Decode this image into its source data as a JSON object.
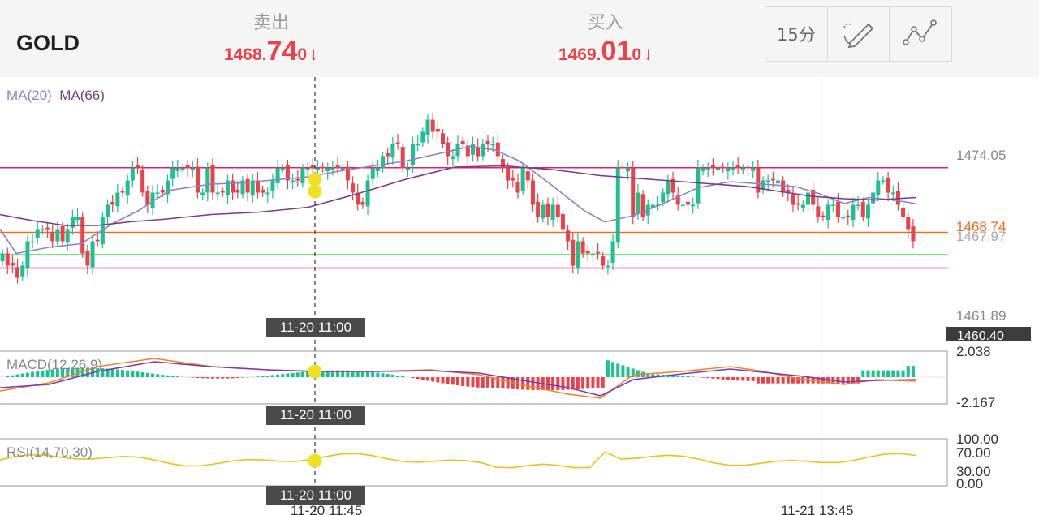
{
  "header": {
    "symbol": "GOLD",
    "sell": {
      "label": "卖出",
      "price_head": "1468.",
      "price_big": "74",
      "price_tail": "0",
      "arrow": "↓"
    },
    "buy": {
      "label": "买入",
      "price_head": "1469.",
      "price_big": "01",
      "price_tail": "0",
      "arrow": "↓"
    },
    "toolbar": {
      "interval": "15分",
      "draw_icon": "pencil-icon",
      "indicator_icon": "line-chart-icon"
    }
  },
  "colors": {
    "up": "#1fbf8f",
    "down": "#e8424a",
    "ma20": "#8b82c4",
    "ma66": "#7b3a87",
    "price_line": "#f26a1b",
    "level_pink": "#e0206a",
    "level_green": "#2ee84a",
    "dif": "#7b3ab0",
    "dea": "#e8842a",
    "rsi": "#e8c020",
    "marker": "#f0e020"
  },
  "chart_data": [
    {
      "type": "candlestick",
      "panel": "price",
      "indicators_label_ma20": "MA(20)",
      "indicators_label_ma66": "MA(66)",
      "y_ticks": [
        "1474.05",
        "1461.89"
      ],
      "current_price": "1468.74",
      "current_price_under": "1467.97",
      "bottom_tag": "1460.40",
      "ylim": [
        1459.5,
        1481.5
      ],
      "horizontal_lines": [
        {
          "value": 1474.05,
          "color": "pink"
        },
        {
          "value": 1468.74,
          "color": "orange"
        },
        {
          "value": 1466.9,
          "color": "green"
        },
        {
          "value": 1465.8,
          "color": "pink"
        }
      ],
      "closes": [
        1467,
        1466,
        1466,
        1465,
        1466,
        1468,
        1468,
        1469,
        1469,
        1469,
        1468,
        1469,
        1468,
        1469,
        1470,
        1470,
        1467,
        1466,
        1468,
        1468,
        1470,
        1471,
        1471,
        1472,
        1472,
        1473,
        1474,
        1474,
        1472,
        1471,
        1472,
        1472,
        1472,
        1473,
        1474,
        1474,
        1474,
        1474,
        1474,
        1472,
        1472,
        1474,
        1472,
        1472,
        1472,
        1473,
        1472,
        1472,
        1473,
        1472,
        1473,
        1472,
        1472,
        1472,
        1473,
        1474,
        1474,
        1473,
        1473,
        1473,
        1474,
        1474,
        1474,
        1474,
        1474,
        1474,
        1474,
        1474,
        1474,
        1473,
        1472,
        1471,
        1471,
        1473,
        1474,
        1474,
        1475,
        1475,
        1476,
        1476,
        1474,
        1474,
        1476,
        1476,
        1477,
        1478,
        1477,
        1477,
        1476,
        1475,
        1475,
        1476,
        1476,
        1475,
        1476,
        1475,
        1476,
        1476,
        1476,
        1475,
        1474,
        1473,
        1473,
        1472,
        1474,
        1473,
        1471,
        1470,
        1471,
        1470,
        1471,
        1470,
        1469,
        1468,
        1466,
        1468,
        1467,
        1467,
        1467,
        1467,
        1466,
        1466,
        1468,
        1474,
        1474,
        1474,
        1470,
        1472,
        1470,
        1471,
        1471,
        1471,
        1472,
        1473,
        1472,
        1471,
        1471,
        1471,
        1471,
        1474,
        1474,
        1474,
        1474,
        1474,
        1474,
        1474,
        1474,
        1474,
        1474,
        1474,
        1474,
        1472,
        1473,
        1473,
        1473,
        1473,
        1472,
        1472,
        1471,
        1471,
        1471,
        1472,
        1471,
        1470,
        1470,
        1471,
        1471,
        1470,
        1470,
        1470,
        1471,
        1471,
        1470,
        1471,
        1472,
        1473,
        1473,
        1472,
        1472,
        1471,
        1470,
        1469,
        1468
      ],
      "ma20_pts": [
        [
          0,
          1469
        ],
        [
          20,
          1467
        ],
        [
          60,
          1467.5
        ],
        [
          100,
          1467.8
        ],
        [
          140,
          1469.5
        ],
        [
          170,
          1470.5
        ],
        [
          210,
          1472.2
        ],
        [
          260,
          1472.7
        ],
        [
          300,
          1472.8
        ],
        [
          330,
          1473
        ],
        [
          380,
          1473.3
        ],
        [
          420,
          1473.8
        ],
        [
          460,
          1474.2
        ],
        [
          500,
          1474.6
        ],
        [
          540,
          1475.2
        ],
        [
          580,
          1475.8
        ],
        [
          610,
          1475.5
        ],
        [
          640,
          1474.6
        ],
        [
          680,
          1472.6
        ],
        [
          720,
          1470.5
        ],
        [
          745,
          1469.6
        ],
        [
          780,
          1470.1
        ],
        [
          820,
          1471.2
        ],
        [
          860,
          1472.4
        ],
        [
          900,
          1472.9
        ],
        [
          940,
          1472.7
        ],
        [
          980,
          1472.5
        ],
        [
          1010,
          1471.9
        ],
        [
          1040,
          1471.1
        ],
        [
          1070,
          1471.6
        ],
        [
          1100,
          1471.4
        ],
        [
          1128,
          1471.1
        ]
      ],
      "ma66_pts": [
        [
          0,
          1470.2
        ],
        [
          40,
          1469.7
        ],
        [
          80,
          1469.3
        ],
        [
          120,
          1469.3
        ],
        [
          160,
          1469.6
        ],
        [
          200,
          1469.8
        ],
        [
          260,
          1470.2
        ],
        [
          320,
          1470.4
        ],
        [
          380,
          1470.8
        ],
        [
          440,
          1471.9
        ],
        [
          500,
          1473.1
        ],
        [
          560,
          1474.1
        ],
        [
          620,
          1474.2
        ],
        [
          680,
          1473.9
        ],
        [
          740,
          1473.4
        ],
        [
          800,
          1473.1
        ],
        [
          860,
          1472.8
        ],
        [
          920,
          1472.5
        ],
        [
          960,
          1472.1
        ],
        [
          1000,
          1471.7
        ],
        [
          1040,
          1471.5
        ],
        [
          1080,
          1471.4
        ],
        [
          1128,
          1471.6
        ]
      ],
      "markers": [
        1473.1,
        1472.1
      ]
    },
    {
      "type": "bar",
      "panel": "macd",
      "label": "MACD(12,26,9)",
      "y_ticks": [
        "2.038",
        "-2.167"
      ],
      "ylim": [
        -2.167,
        2.038
      ]
    },
    {
      "type": "line",
      "panel": "rsi",
      "label": "RSI(14,70,30)",
      "y_ticks": [
        "100.00",
        "70.00",
        "30.00",
        "0.00"
      ],
      "ylim": [
        0,
        100
      ]
    }
  ],
  "time_tags": {
    "crosshair": "11-20 11:00",
    "axis_1": "11-20 11:45",
    "axis_2": "11-21 13:45"
  }
}
